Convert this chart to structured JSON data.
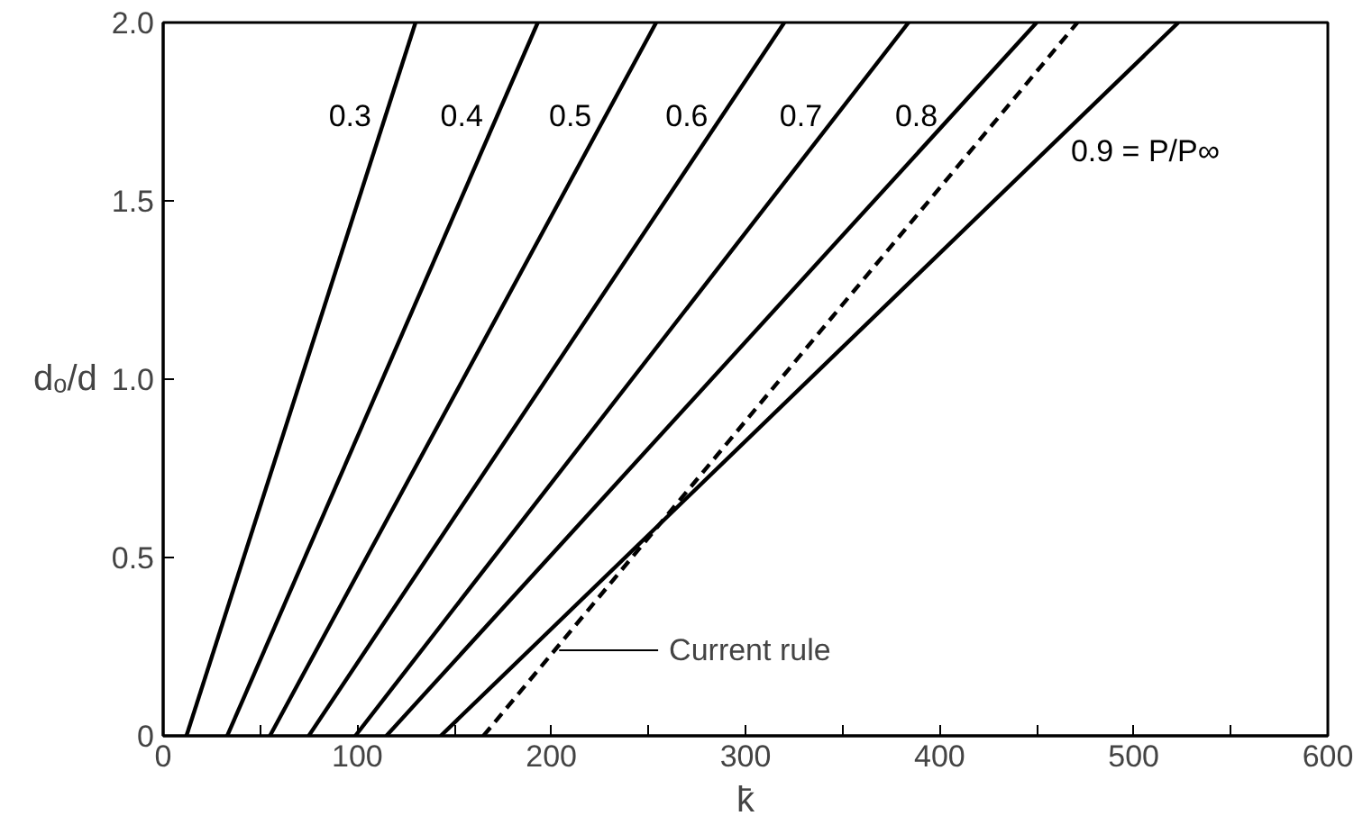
{
  "chart_data": {
    "type": "line",
    "xlabel": "k̄",
    "ylabel": "dₒ/d",
    "xlim": [
      0,
      600
    ],
    "ylim": [
      0,
      2.0
    ],
    "xticks": [
      0,
      {
        "value": 50,
        "label": null
      },
      100,
      {
        "value": 150,
        "label": null
      },
      200,
      {
        "value": 250,
        "label": null
      },
      300,
      {
        "value": 350,
        "label": null
      },
      400,
      {
        "value": 450,
        "label": null
      },
      500,
      {
        "value": 550,
        "label": null
      },
      600
    ],
    "yticks": [
      0,
      0.5,
      {
        "value": 1,
        "label": "1.0"
      },
      1.5,
      {
        "value": 2,
        "label": "2.0"
      }
    ],
    "grid": false,
    "marker": "none",
    "series": [
      {
        "name": "0.3",
        "color": "#000000",
        "x": [
          12,
          130
        ],
        "values": [
          0,
          2.0
        ]
      },
      {
        "name": "0.4",
        "color": "#000000",
        "x": [
          33,
          193
        ],
        "values": [
          0,
          2.0
        ]
      },
      {
        "name": "0.5",
        "color": "#000000",
        "x": [
          55,
          254
        ],
        "values": [
          0,
          2.0
        ]
      },
      {
        "name": "0.6",
        "color": "#000000",
        "x": [
          75,
          320
        ],
        "values": [
          0,
          2.0
        ]
      },
      {
        "name": "0.7",
        "color": "#000000",
        "x": [
          99,
          384
        ],
        "values": [
          0,
          2.0
        ]
      },
      {
        "name": "0.8",
        "color": "#000000",
        "x": [
          115,
          450
        ],
        "values": [
          0,
          2.0
        ]
      },
      {
        "color": "#000000",
        "x": [
          165,
          471
        ],
        "values": [
          0,
          2.0
        ],
        "line_style": "dashed"
      },
      {
        "name": "0.9 = P/P∞",
        "color": "#000000",
        "x": [
          143,
          523
        ],
        "values": [
          0,
          2.0
        ]
      }
    ],
    "annotations": [
      "Current rule"
    ]
  }
}
